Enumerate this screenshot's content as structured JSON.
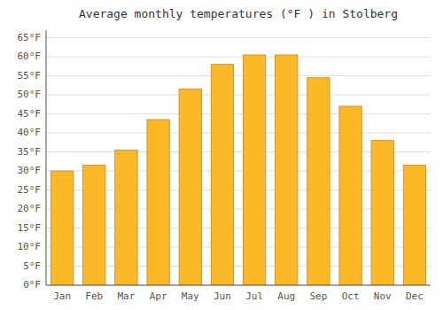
{
  "chart_data": {
    "type": "bar",
    "title": "Average monthly temperatures (°F ) in Stolberg",
    "categories": [
      "Jan",
      "Feb",
      "Mar",
      "Apr",
      "May",
      "Jun",
      "Jul",
      "Aug",
      "Sep",
      "Oct",
      "Nov",
      "Dec"
    ],
    "values": [
      30,
      31.5,
      35.5,
      43.5,
      51.5,
      58,
      60.5,
      60.5,
      54.5,
      47,
      38,
      31.5
    ],
    "color": "#FDB827",
    "ylim": [
      0,
      67
    ],
    "yticks": [
      {
        "value": 0,
        "label": "0°F"
      },
      {
        "value": 5,
        "label": "5°F"
      },
      {
        "value": 10,
        "label": "10°F"
      },
      {
        "value": 15,
        "label": "15°F"
      },
      {
        "value": 20,
        "label": "20°F"
      },
      {
        "value": 25,
        "label": "25°F"
      },
      {
        "value": 30,
        "label": "30°F"
      },
      {
        "value": 35,
        "label": "35°F"
      },
      {
        "value": 40,
        "label": "40°F"
      },
      {
        "value": 45,
        "label": "45°F"
      },
      {
        "value": 50,
        "label": "50°F"
      },
      {
        "value": 55,
        "label": "55°F"
      },
      {
        "value": 60,
        "label": "60°F"
      },
      {
        "value": 65,
        "label": "65°F"
      }
    ],
    "grid": true
  }
}
